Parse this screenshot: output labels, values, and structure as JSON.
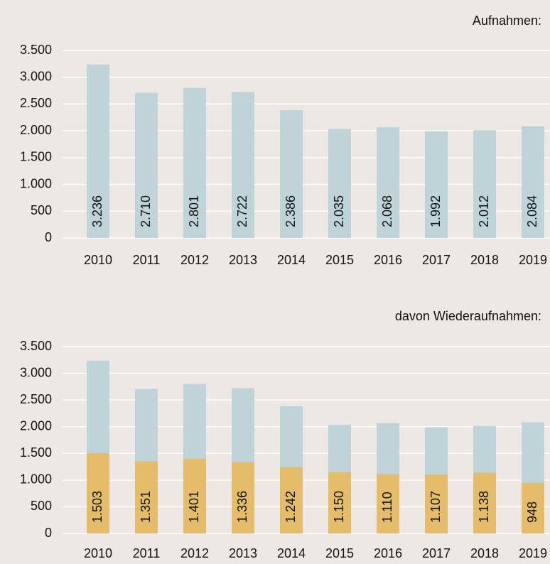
{
  "chart_data": [
    {
      "type": "bar",
      "title": "Aufnahmen:",
      "categories": [
        "2010",
        "2011",
        "2012",
        "2013",
        "2014",
        "2015",
        "2016",
        "2017",
        "2018",
        "2019"
      ],
      "series": [
        {
          "color": "#bfd4d9",
          "values": [
            3236,
            2710,
            2801,
            2722,
            2386,
            2035,
            2068,
            1992,
            2012,
            2084
          ],
          "value_labels": [
            "3.236",
            "2.710",
            "2.801",
            "2.722",
            "2.386",
            "2.035",
            "2.068",
            "1.992",
            "2.012",
            "2.084"
          ]
        }
      ],
      "ylim": [
        0,
        3500
      ],
      "yticks": [
        0,
        500,
        {
          "value": 1000,
          "label": "1.000"
        },
        {
          "value": 1500,
          "label": "1.500"
        },
        {
          "value": 2000,
          "label": "2.000"
        },
        {
          "value": 2500,
          "label": "2.500"
        },
        {
          "value": 3000,
          "label": "3.000"
        },
        {
          "value": 3500,
          "label": "3.500"
        }
      ],
      "grid": true
    },
    {
      "type": "bar",
      "title": "davon Wiederaufnahmen:",
      "categories": [
        "2010",
        "2011",
        "2012",
        "2013",
        "2014",
        "2015",
        "2016",
        "2017",
        "2018",
        "2019"
      ],
      "series": [
        {
          "color": "#bfd4d9",
          "values": [
            3236,
            2710,
            2801,
            2722,
            2386,
            2035,
            2068,
            1992,
            2012,
            2084
          ]
        },
        {
          "color": "#e4bc6a",
          "values": [
            1503,
            1351,
            1401,
            1336,
            1242,
            1150,
            1110,
            1107,
            1138,
            948
          ],
          "value_labels": [
            "1.503",
            "1.351",
            "1.401",
            "1.336",
            "1.242",
            "1.150",
            "1.110",
            "1.107",
            "1.138",
            "948"
          ]
        }
      ],
      "ylim": [
        0,
        3500
      ],
      "yticks": [
        0,
        500,
        {
          "value": 1000,
          "label": "1.000"
        },
        {
          "value": 1500,
          "label": "1.500"
        },
        {
          "value": 2000,
          "label": "2.000"
        },
        {
          "value": 2500,
          "label": "2.500"
        },
        {
          "value": 3000,
          "label": "3.000"
        },
        {
          "value": 3500,
          "label": "3.500"
        }
      ],
      "grid": true
    }
  ]
}
